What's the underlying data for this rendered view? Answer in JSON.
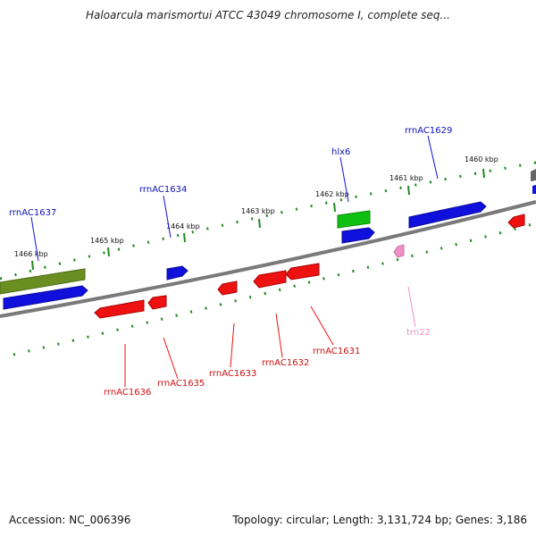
{
  "title": "Haloarcula marismortui ATCC 43049 chromosome I, complete seq...",
  "accession": "Accession: NC_006396",
  "summary": "Topology: circular; Length: 3,131,724 bp; Genes: 3,186",
  "colors": {
    "backbone": "#7a7a7a",
    "tick": "#228822",
    "forward_gene": "#1010dd",
    "rrna_forward": "#10c010",
    "rrna_misc": "#6b8e23",
    "reverse_gene": "#ee1111",
    "trna": "#f090c8"
  },
  "tick_labels": [
    "1466 kbp",
    "1465 kbp",
    "1464 kbp",
    "1463 kbp",
    "1462 kbp",
    "1461 kbp",
    "1460 kbp"
  ],
  "forward_labels": [
    "rrnAC1637",
    "rrnAC1634",
    "hlx6",
    "rrnAC1629"
  ],
  "reverse_labels": [
    "rrnAC1636",
    "rrnAC1635",
    "rrnAC1633",
    "rrnAC1632",
    "rrnAC1631",
    "trn22"
  ]
}
